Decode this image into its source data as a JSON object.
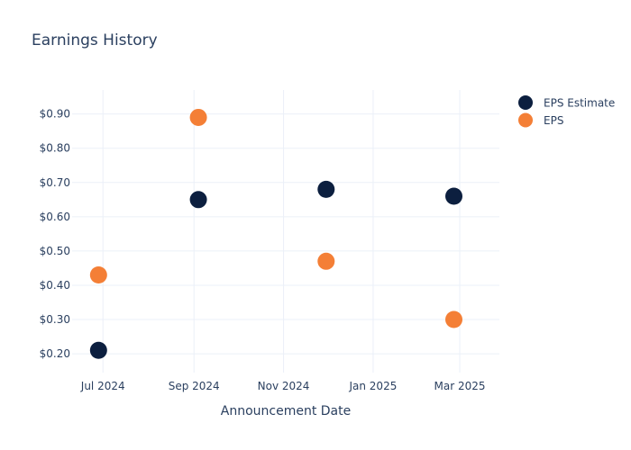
{
  "chart_data": {
    "type": "scatter",
    "title": "Earnings History",
    "xlabel": "Announcement Date",
    "ylabel": "",
    "x_axis_type": "date",
    "xlim": [
      "2024-06-10",
      "2025-03-28"
    ],
    "ylim": [
      0.145,
      0.97
    ],
    "x_ticks": [
      {
        "date": "2024-07-01",
        "label": "Jul 2024"
      },
      {
        "date": "2024-09-01",
        "label": "Sep 2024"
      },
      {
        "date": "2024-11-01",
        "label": "Nov 2024"
      },
      {
        "date": "2025-01-01",
        "label": "Jan 2025"
      },
      {
        "date": "2025-03-01",
        "label": "Mar 2025"
      }
    ],
    "y_ticks": [
      {
        "value": 0.2,
        "label": "$0.20"
      },
      {
        "value": 0.3,
        "label": "$0.30"
      },
      {
        "value": 0.4,
        "label": "$0.40"
      },
      {
        "value": 0.5,
        "label": "$0.50"
      },
      {
        "value": 0.6,
        "label": "$0.60"
      },
      {
        "value": 0.7,
        "label": "$0.70"
      },
      {
        "value": 0.8,
        "label": "$0.80"
      },
      {
        "value": 0.9,
        "label": "$0.90"
      }
    ],
    "grid": true,
    "legend_position": "top-right",
    "series": [
      {
        "name": "EPS Estimate",
        "color": "#0c1f3f",
        "points": [
          {
            "x": "2024-06-28",
            "y": 0.21
          },
          {
            "x": "2024-09-04",
            "y": 0.65
          },
          {
            "x": "2024-11-30",
            "y": 0.68
          },
          {
            "x": "2025-02-25",
            "y": 0.66
          }
        ]
      },
      {
        "name": "EPS",
        "color": "#f47f36",
        "points": [
          {
            "x": "2024-06-28",
            "y": 0.43
          },
          {
            "x": "2024-09-04",
            "y": 0.89
          },
          {
            "x": "2024-11-30",
            "y": 0.47
          },
          {
            "x": "2025-02-25",
            "y": 0.3
          }
        ]
      }
    ]
  }
}
